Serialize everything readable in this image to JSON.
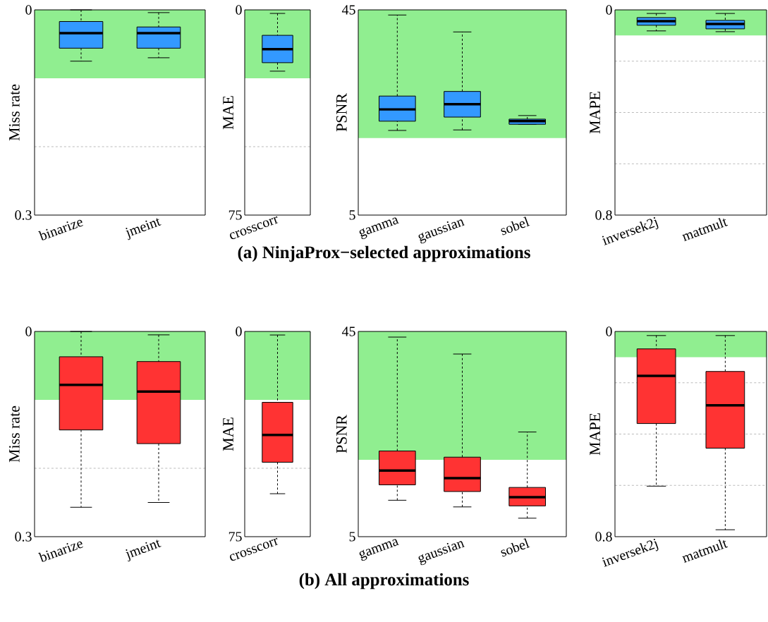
{
  "chart_data": [
    {
      "type": "box",
      "ylabel": "Miss rate",
      "categories": [
        "binarize",
        "jmeint"
      ],
      "ylim": [
        0.3,
        0
      ],
      "yticks": [
        0,
        0.3
      ],
      "bands": [
        {
          "axis": "y",
          "from": 0,
          "to": 0.1,
          "color": "#90ee90"
        }
      ],
      "ref_lines": [
        {
          "axis": "y",
          "value": 0.2,
          "line_style": "dashed",
          "color": "#bbbbbb"
        }
      ],
      "series": [
        {
          "color": "#3399ff",
          "boxes": [
            {
              "low": 0,
              "q1": 0.017,
              "median": 0.034,
              "q3": 0.056,
              "high": 0.075
            },
            {
              "low": 0.004,
              "q1": 0.025,
              "median": 0.034,
              "q3": 0.056,
              "high": 0.07
            }
          ]
        }
      ],
      "annotations": [
        "(a) NinjaProx−selected approximations"
      ]
    },
    {
      "type": "box",
      "ylabel": "MAE",
      "categories": [
        "crosscorr"
      ],
      "ylim": [
        75,
        0
      ],
      "yticks": [
        0,
        75
      ],
      "bands": [
        {
          "axis": "y",
          "from": 0,
          "to": 25,
          "color": "#90ee90"
        }
      ],
      "ref_lines": [
        {
          "axis": "y",
          "value": 50,
          "line_style": "dashed",
          "color": "#bbbbbb"
        }
      ],
      "series": [
        {
          "color": "#3399ff",
          "boxes": [
            {
              "low": 1.3,
              "q1": 9.3,
              "median": 14.4,
              "q3": 19.3,
              "high": 22.4
            }
          ]
        }
      ]
    },
    {
      "type": "box",
      "ylabel": "PSNR",
      "categories": [
        "gamma",
        "gaussian",
        "sobel"
      ],
      "ylim": [
        5,
        45
      ],
      "yticks": [
        5,
        45
      ],
      "bands": [
        {
          "axis": "y",
          "from": 20,
          "to": 45,
          "color": "#90ee90"
        }
      ],
      "series": [
        {
          "color": "#3399ff",
          "boxes": [
            {
              "low": 21.5,
              "q1": 23.3,
              "median": 25.6,
              "q3": 28.2,
              "high": 44
            },
            {
              "low": 21.6,
              "q1": 24.1,
              "median": 26.6,
              "q3": 29.1,
              "high": 40.7
            },
            {
              "low": 22.7,
              "q1": 22.7,
              "median": 23.3,
              "q3": 23.7,
              "high": 24.4
            }
          ]
        }
      ]
    },
    {
      "type": "box",
      "ylabel": "MAPE",
      "categories": [
        "inversek2j",
        "matmult"
      ],
      "ylim": [
        0.8,
        0
      ],
      "yticks": [
        0,
        0.8
      ],
      "bands": [
        {
          "axis": "y",
          "from": 0,
          "to": 0.1,
          "color": "#90ee90"
        }
      ],
      "ref_lines": [
        {
          "axis": "y",
          "value": 0.2,
          "line_style": "dashed",
          "color": "#bbbbbb"
        },
        {
          "axis": "y",
          "value": 0.4,
          "line_style": "dashed",
          "color": "#bbbbbb"
        },
        {
          "axis": "y",
          "value": 0.6,
          "line_style": "dashed",
          "color": "#bbbbbb"
        }
      ],
      "series": [
        {
          "color": "#3399ff",
          "boxes": [
            {
              "low": 0.014,
              "q1": 0.03,
              "median": 0.044,
              "q3": 0.06,
              "high": 0.082
            },
            {
              "low": 0.014,
              "q1": 0.041,
              "median": 0.055,
              "q3": 0.074,
              "high": 0.085
            }
          ]
        }
      ]
    },
    {
      "type": "box",
      "ylabel": "Miss rate",
      "categories": [
        "binarize",
        "jmeint"
      ],
      "ylim": [
        0.3,
        0
      ],
      "yticks": [
        0,
        0.3
      ],
      "bands": [
        {
          "axis": "y",
          "from": 0,
          "to": 0.1,
          "color": "#90ee90"
        }
      ],
      "ref_lines": [
        {
          "axis": "y",
          "value": 0.2,
          "line_style": "dashed",
          "color": "#bbbbbb"
        }
      ],
      "series": [
        {
          "color": "#ff3333",
          "boxes": [
            {
              "low": 0,
              "q1": 0.037,
              "median": 0.078,
              "q3": 0.144,
              "high": 0.257
            },
            {
              "low": 0.005,
              "q1": 0.044,
              "median": 0.088,
              "q3": 0.164,
              "high": 0.25
            }
          ]
        }
      ],
      "annotations": [
        "(b) All approximations"
      ]
    },
    {
      "type": "box",
      "ylabel": "MAE",
      "categories": [
        "crosscorr"
      ],
      "ylim": [
        75,
        0
      ],
      "yticks": [
        0,
        75
      ],
      "bands": [
        {
          "axis": "y",
          "from": 0,
          "to": 25,
          "color": "#90ee90"
        }
      ],
      "ref_lines": [
        {
          "axis": "y",
          "value": 50,
          "line_style": "dashed",
          "color": "#bbbbbb"
        }
      ],
      "series": [
        {
          "color": "#ff3333",
          "boxes": [
            {
              "low": 1.3,
              "q1": 25.9,
              "median": 37.8,
              "q3": 47.8,
              "high": 59.3
            }
          ]
        }
      ]
    },
    {
      "type": "box",
      "ylabel": "PSNR",
      "categories": [
        "gamma",
        "gaussian",
        "sobel"
      ],
      "ylim": [
        5,
        45
      ],
      "yticks": [
        5,
        45
      ],
      "bands": [
        {
          "axis": "y",
          "from": 20,
          "to": 45,
          "color": "#90ee90"
        }
      ],
      "series": [
        {
          "color": "#ff3333",
          "boxes": [
            {
              "low": 12.1,
              "q1": 15.1,
              "median": 17.9,
              "q3": 21.7,
              "high": 43.9
            },
            {
              "low": 10.8,
              "q1": 13.8,
              "median": 16.4,
              "q3": 20.5,
              "high": 40.6
            },
            {
              "low": 8.6,
              "q1": 11,
              "median": 12.7,
              "q3": 14.6,
              "high": 25.4
            }
          ]
        }
      ]
    },
    {
      "type": "box",
      "ylabel": "MAPE",
      "categories": [
        "inversek2j",
        "matmult"
      ],
      "ylim": [
        0.8,
        0
      ],
      "yticks": [
        0,
        0.8
      ],
      "bands": [
        {
          "axis": "y",
          "from": 0,
          "to": 0.1,
          "color": "#90ee90"
        }
      ],
      "ref_lines": [
        {
          "axis": "y",
          "value": 0.2,
          "line_style": "dashed",
          "color": "#bbbbbb"
        },
        {
          "axis": "y",
          "value": 0.4,
          "line_style": "dashed",
          "color": "#bbbbbb"
        },
        {
          "axis": "y",
          "value": 0.6,
          "line_style": "dashed",
          "color": "#bbbbbb"
        }
      ],
      "series": [
        {
          "color": "#ff3333",
          "boxes": [
            {
              "low": 0.016,
              "q1": 0.068,
              "median": 0.173,
              "q3": 0.359,
              "high": 0.603
            },
            {
              "low": 0.016,
              "q1": 0.156,
              "median": 0.288,
              "q3": 0.455,
              "high": 0.773
            }
          ]
        }
      ]
    }
  ]
}
